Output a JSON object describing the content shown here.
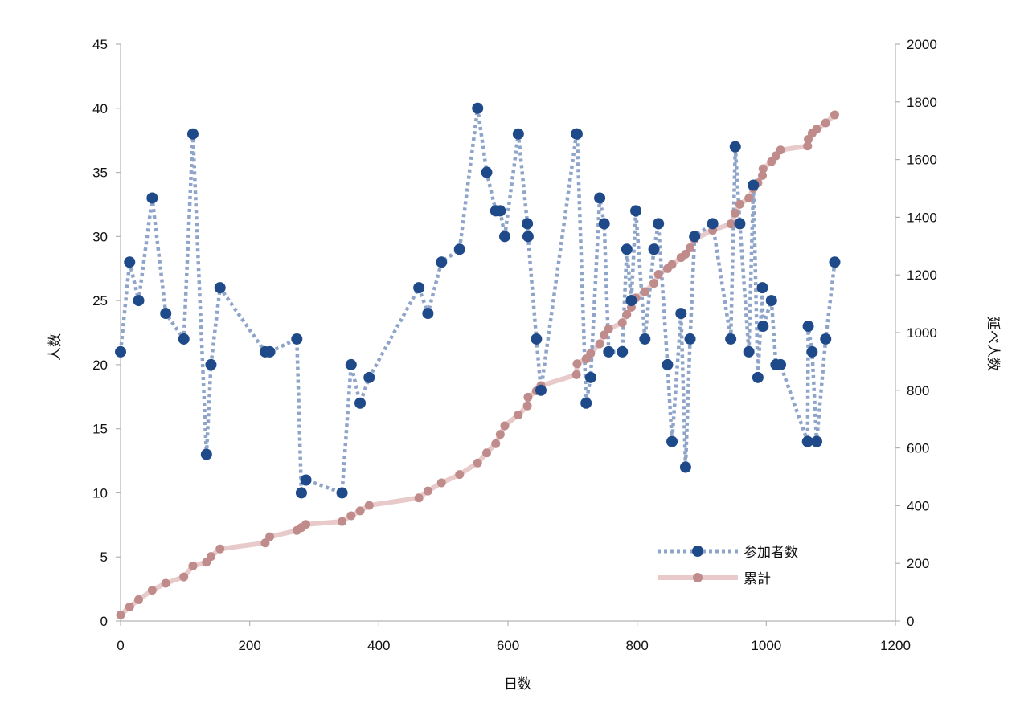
{
  "chart_data": {
    "type": "line",
    "xlabel": "日数",
    "ylabel_left": "人数",
    "ylabel_right": "延べ人数",
    "xlim": [
      0,
      1200
    ],
    "x_ticks": [
      0,
      200,
      400,
      600,
      800,
      1000,
      1200
    ],
    "ylim_left": [
      0,
      45
    ],
    "y_ticks_left": [
      0,
      5,
      10,
      15,
      20,
      25,
      30,
      35,
      40,
      45
    ],
    "ylim_right": [
      0,
      2000
    ],
    "y_ticks_right": [
      0,
      200,
      400,
      600,
      800,
      1000,
      1200,
      1400,
      1600,
      1800,
      2000
    ],
    "grid": false,
    "legend_position": "bottom-right",
    "x": [
      0,
      14,
      28,
      49,
      70,
      98,
      112,
      133,
      140,
      154,
      224,
      231,
      273,
      280,
      287,
      343,
      357,
      371,
      385,
      462,
      476,
      497,
      525,
      553,
      567,
      581,
      588,
      595,
      616,
      630,
      631,
      644,
      651,
      706,
      707,
      721,
      728,
      742,
      749,
      756,
      777,
      784,
      791,
      798,
      812,
      826,
      833,
      847,
      854,
      868,
      875,
      882,
      889,
      917,
      945,
      952,
      959,
      973,
      980,
      987,
      994,
      995,
      1008,
      1015,
      1022,
      1064,
      1065,
      1071,
      1078,
      1092,
      1106
    ],
    "series": [
      {
        "name": "参加者数",
        "axis": "left",
        "color": "#1f4a8a",
        "line_color": "#8ea4c8",
        "values": [
          21,
          28,
          25,
          33,
          24,
          22,
          38,
          13,
          20,
          26,
          21,
          21,
          22,
          10,
          11,
          10,
          20,
          17,
          19,
          26,
          24,
          28,
          29,
          40,
          35,
          32,
          32,
          30,
          38,
          31,
          30,
          22,
          18,
          38,
          38,
          17,
          19,
          33,
          31,
          21,
          21,
          29,
          25,
          32,
          22,
          29,
          31,
          20,
          14,
          24,
          12,
          22,
          30,
          31,
          22,
          37,
          31,
          21,
          34,
          19,
          26,
          23,
          25,
          20,
          20,
          14,
          23,
          21,
          14,
          22,
          28
        ]
      },
      {
        "name": "累計",
        "axis": "right",
        "color": "#c08b8b",
        "line_color": "#e8caca",
        "values": [
          21,
          49,
          74,
          107,
          131,
          153,
          191,
          204,
          224,
          250,
          271,
          292,
          314,
          324,
          335,
          345,
          365,
          382,
          401,
          427,
          451,
          479,
          508,
          548,
          583,
          615,
          647,
          677,
          715,
          746,
          776,
          798,
          816,
          854,
          892,
          909,
          928,
          961,
          992,
          1013,
          1034,
          1063,
          1088,
          1120,
          1142,
          1171,
          1202,
          1222,
          1236,
          1260,
          1272,
          1294,
          1324,
          1355,
          1377,
          1414,
          1445,
          1466,
          1500,
          1519,
          1545,
          1568,
          1593,
          1613,
          1633,
          1647,
          1670,
          1691,
          1705,
          1727,
          1755
        ]
      }
    ]
  }
}
